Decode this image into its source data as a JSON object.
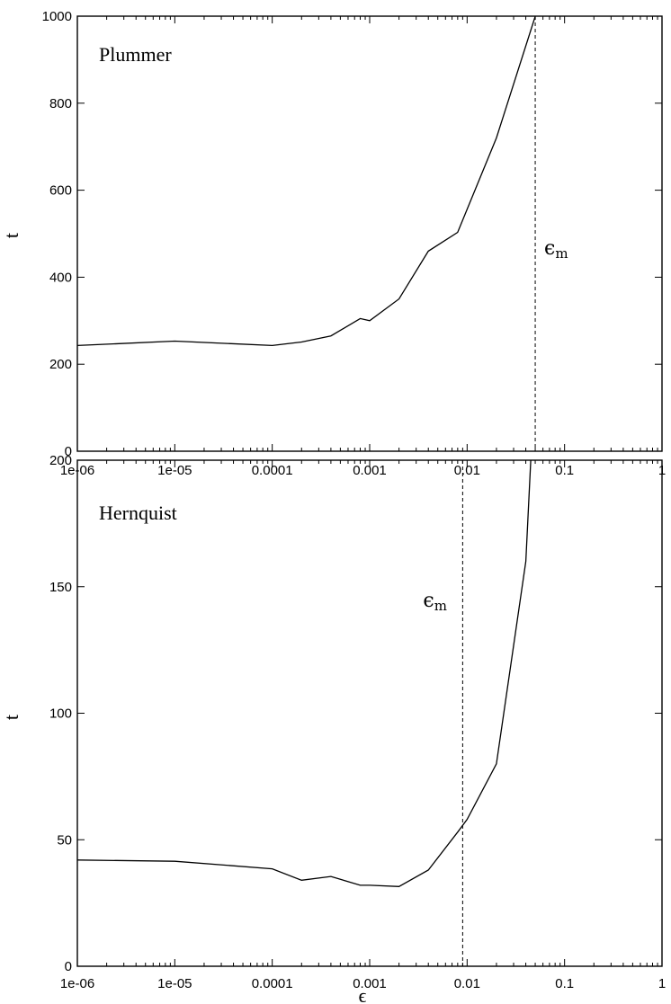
{
  "chart_data": [
    {
      "type": "line",
      "title": "Plummer",
      "xlabel": "",
      "ylabel": "t",
      "xscale": "log",
      "xlim": [
        1e-06,
        1
      ],
      "ylim": [
        0,
        1000
      ],
      "xticks": [
        "1e-06",
        "1e-05",
        "0.0001",
        "0.001",
        "0.01",
        "0.1",
        "1"
      ],
      "xtick_values": [
        1e-06,
        1e-05,
        0.0001,
        0.001,
        0.01,
        0.1,
        1
      ],
      "yticks": [
        "0",
        "200",
        "400",
        "600",
        "800",
        "1000"
      ],
      "ytick_values": [
        0,
        200,
        400,
        600,
        800,
        1000
      ],
      "grid": false,
      "series": [
        {
          "x": [
            1e-06,
            1e-05,
            0.0001,
            0.0002,
            0.0004,
            0.0008,
            0.001,
            0.002,
            0.004,
            0.008,
            0.02,
            0.05
          ],
          "y": [
            243,
            253,
            243,
            251,
            265,
            305,
            300,
            350,
            460,
            503,
            720,
            1000
          ]
        }
      ],
      "reference_line": {
        "x": 0.05,
        "style": "dashed",
        "label": "ϵ",
        "label_sub": "m"
      }
    },
    {
      "type": "line",
      "title": "Hernquist",
      "xlabel": "ϵ",
      "ylabel": "t",
      "xscale": "log",
      "xlim": [
        1e-06,
        1
      ],
      "ylim": [
        0,
        200
      ],
      "xticks": [
        "1e-06",
        "1e-05",
        "0.0001",
        "0.001",
        "0.01",
        "0.1",
        "1"
      ],
      "xtick_values": [
        1e-06,
        1e-05,
        0.0001,
        0.001,
        0.01,
        0.1,
        1
      ],
      "yticks": [
        "0",
        "50",
        "100",
        "150",
        "200"
      ],
      "ytick_values": [
        0,
        50,
        100,
        150,
        200
      ],
      "grid": false,
      "series": [
        {
          "x": [
            1e-06,
            1e-05,
            0.0001,
            0.0002,
            0.0004,
            0.0008,
            0.001,
            0.002,
            0.004,
            0.008,
            0.01,
            0.02,
            0.04,
            0.045
          ],
          "y": [
            42,
            41.5,
            38.5,
            34,
            35.5,
            32,
            32,
            31.5,
            38,
            53,
            58,
            80,
            160,
            200
          ]
        }
      ],
      "reference_line": {
        "x": 0.009,
        "style": "dashed",
        "label": "ϵ",
        "label_sub": "m"
      }
    }
  ]
}
